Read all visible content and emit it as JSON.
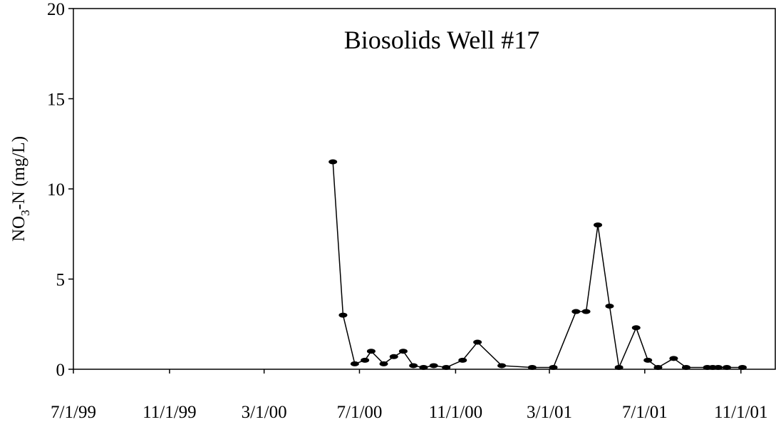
{
  "chart_data": {
    "type": "line",
    "title": "Biosolids Well #17",
    "ylabel_parts": [
      "NO",
      "3",
      "-N (mg/L)"
    ],
    "x": [
      "5/28/00",
      "6/10/00",
      "6/25/00",
      "7/8/00",
      "7/16/00",
      "8/1/00",
      "8/14/00",
      "8/26/00",
      "9/8/00",
      "9/21/00",
      "10/4/00",
      "10/20/00",
      "11/10/00",
      "11/29/00",
      "12/30/00",
      "2/7/01",
      "3/6/01",
      "4/4/01",
      "4/17/01",
      "5/2/01",
      "5/17/01",
      "5/29/01",
      "6/20/01",
      "7/5/01",
      "7/18/01",
      "8/7/01",
      "8/23/01",
      "9/19/01",
      "9/26/01",
      "10/3/01",
      "10/14/01",
      "11/3/01"
    ],
    "series": [
      {
        "color": "#000000",
        "values": [
          11.5,
          3.0,
          0.3,
          0.5,
          1.0,
          0.3,
          0.7,
          1.0,
          0.2,
          0.1,
          0.2,
          0.1,
          0.5,
          1.5,
          0.2,
          0.1,
          0.1,
          3.2,
          3.2,
          8.0,
          3.5,
          0.1,
          2.3,
          0.5,
          0.1,
          0.6,
          0.1,
          0.1,
          0.1,
          0.1,
          0.1,
          0.1
        ]
      }
    ],
    "xlim": [
      "7/1/99",
      "12/15/01"
    ],
    "xticks": [
      "7/1/99",
      "11/1/99",
      "3/1/00",
      "7/1/00",
      "11/1/00",
      "3/1/01",
      "7/1/01",
      "11/1/01"
    ],
    "ylim": [
      0,
      20
    ],
    "yticks": [
      0,
      5,
      10,
      15,
      20
    ]
  }
}
